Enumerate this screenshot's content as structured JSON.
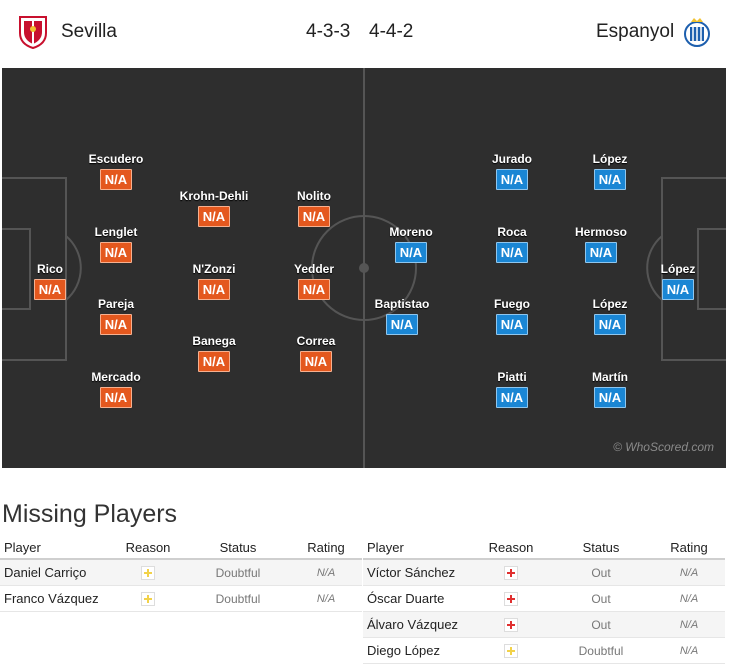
{
  "header": {
    "home_team": "Sevilla",
    "away_team": "Espanyol",
    "home_formation": "4-3-3",
    "away_formation": "4-4-2"
  },
  "pitch": {
    "watermark": "© WhoScored.com",
    "home_players": [
      {
        "name": "Rico",
        "rating": "N/A"
      },
      {
        "name": "Escudero",
        "rating": "N/A"
      },
      {
        "name": "Lenglet",
        "rating": "N/A"
      },
      {
        "name": "Pareja",
        "rating": "N/A"
      },
      {
        "name": "Mercado",
        "rating": "N/A"
      },
      {
        "name": "Krohn-Dehli",
        "rating": "N/A"
      },
      {
        "name": "N'Zonzi",
        "rating": "N/A"
      },
      {
        "name": "Banega",
        "rating": "N/A"
      },
      {
        "name": "Nolito",
        "rating": "N/A"
      },
      {
        "name": "Yedder",
        "rating": "N/A"
      },
      {
        "name": "Correa",
        "rating": "N/A"
      }
    ],
    "away_players": [
      {
        "name": "López",
        "rating": "N/A"
      },
      {
        "name": "López",
        "rating": "N/A"
      },
      {
        "name": "Hermoso",
        "rating": "N/A"
      },
      {
        "name": "López",
        "rating": "N/A"
      },
      {
        "name": "Martín",
        "rating": "N/A"
      },
      {
        "name": "Jurado",
        "rating": "N/A"
      },
      {
        "name": "Roca",
        "rating": "N/A"
      },
      {
        "name": "Fuego",
        "rating": "N/A"
      },
      {
        "name": "Piatti",
        "rating": "N/A"
      },
      {
        "name": "Moreno",
        "rating": "N/A"
      },
      {
        "name": "Baptistao",
        "rating": "N/A"
      }
    ]
  },
  "missing": {
    "title": "Missing Players",
    "headers": {
      "player": "Player",
      "reason": "Reason",
      "status": "Status",
      "rating": "Rating"
    },
    "home": [
      {
        "player": "Daniel Carriço",
        "reason": "doubtful-icon",
        "status": "Doubtful",
        "rating": "N/A"
      },
      {
        "player": "Franco Vázquez",
        "reason": "doubtful-icon",
        "status": "Doubtful",
        "rating": "N/A"
      }
    ],
    "away": [
      {
        "player": "Víctor Sánchez",
        "reason": "injury-icon",
        "status": "Out",
        "rating": "N/A"
      },
      {
        "player": "Óscar Duarte",
        "reason": "injury-icon",
        "status": "Out",
        "rating": "N/A"
      },
      {
        "player": "Álvaro Vázquez",
        "reason": "injury-icon",
        "status": "Out",
        "rating": "N/A"
      },
      {
        "player": "Diego López",
        "reason": "doubtful-icon",
        "status": "Doubtful",
        "rating": "N/A"
      }
    ]
  },
  "colors": {
    "home_rating": "#e4581e",
    "away_rating": "#1a86d4",
    "pitch": "#2e2e2e"
  }
}
